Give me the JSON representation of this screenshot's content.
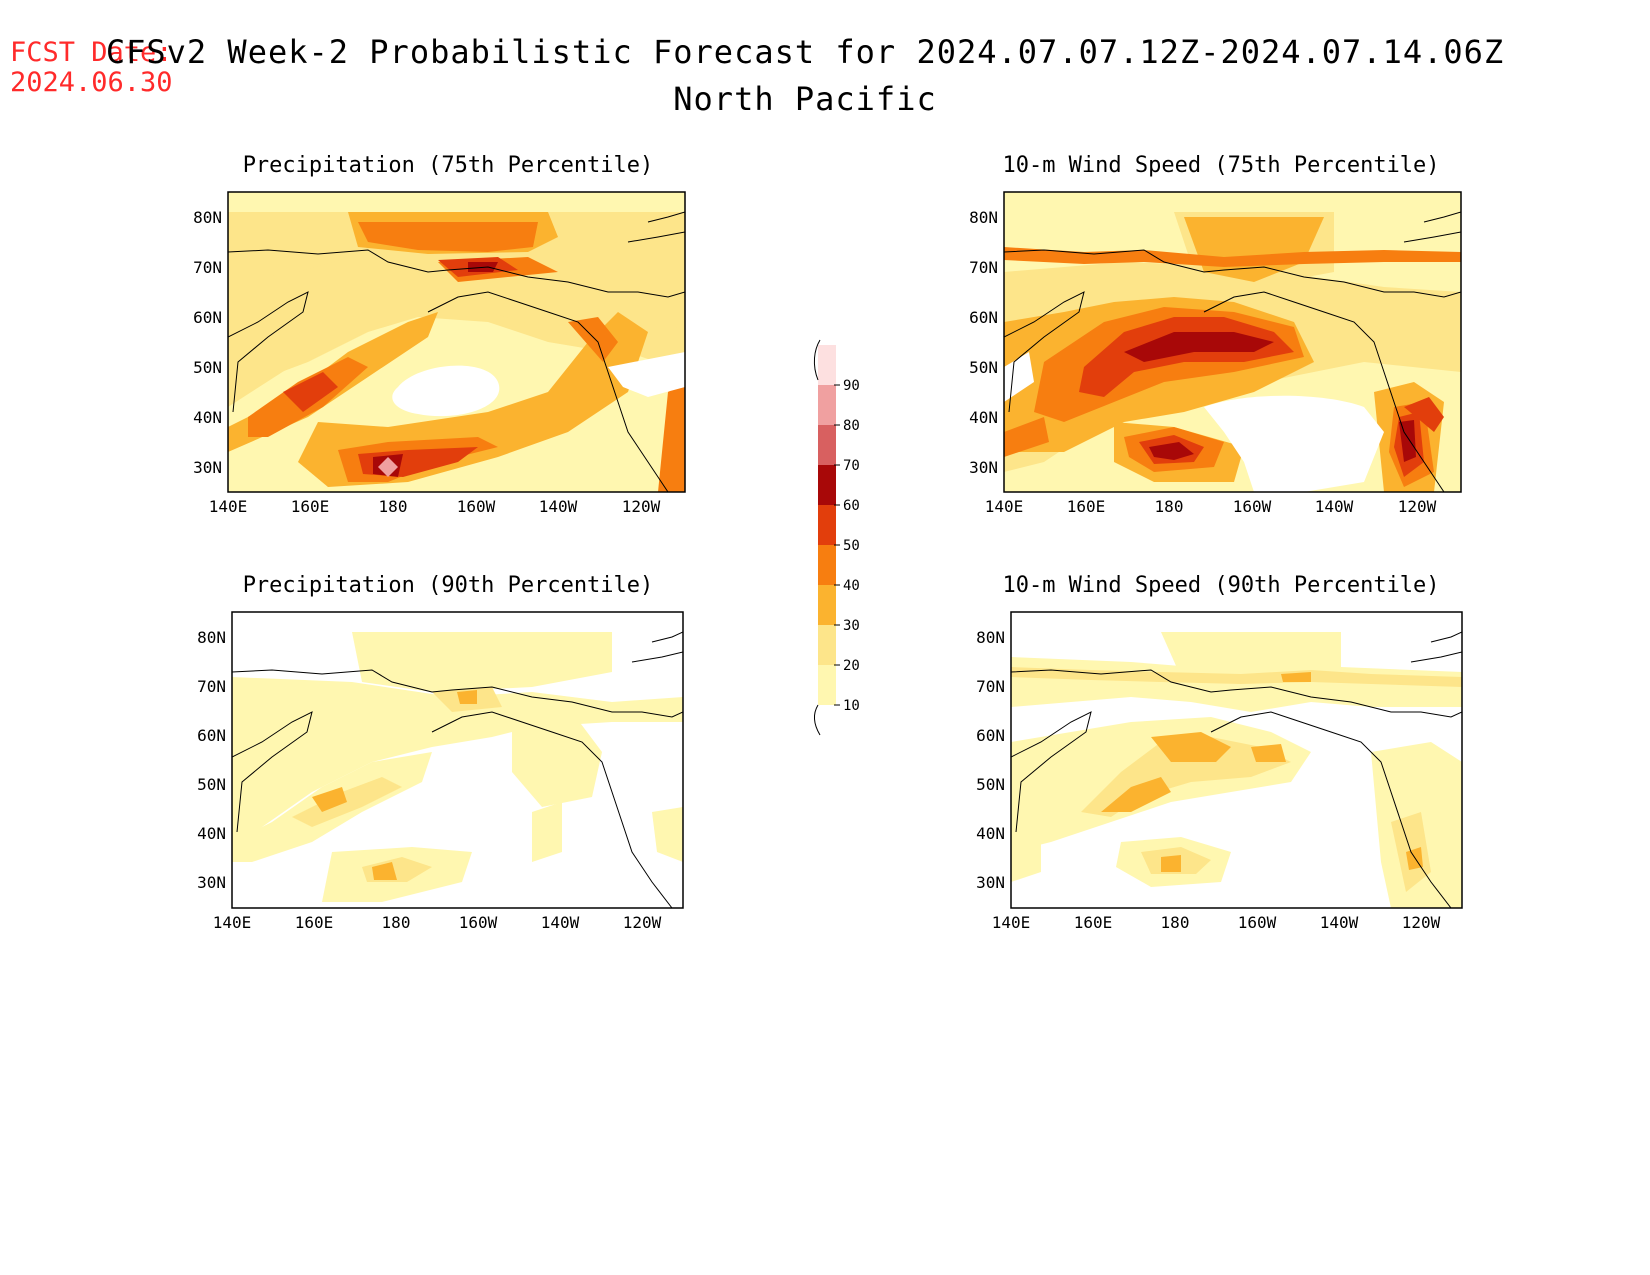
{
  "header": {
    "fcst_label": "FCST Date:",
    "fcst_date": "2024.06.30",
    "title": "CFSv2 Week-2 Probabilistic Forecast for 2024.07.07.12Z-2024.07.14.06Z",
    "subtitle": "North Pacific"
  },
  "axes": {
    "lon_labels": [
      "140E",
      "160E",
      "180",
      "160W",
      "140W",
      "120W"
    ],
    "lat_labels": [
      "80N",
      "70N",
      "60N",
      "50N",
      "40N",
      "30N"
    ]
  },
  "panels": [
    {
      "title": "Precipitation (75th Percentile)"
    },
    {
      "title": "10-m Wind Speed (75th Percentile)"
    },
    {
      "title": "Precipitation (90th Percentile)"
    },
    {
      "title": "10-m Wind Speed (90th Percentile)"
    }
  ],
  "colorbar": {
    "levels": [
      "10",
      "20",
      "30",
      "40",
      "50",
      "60",
      "70",
      "80",
      "90"
    ],
    "colors": [
      "#fff7b0",
      "#fde58a",
      "#fbb32f",
      "#f77e10",
      "#e23e0c",
      "#a80808",
      "#d86060",
      "#f0a0a0",
      "#fde0e0"
    ]
  }
}
